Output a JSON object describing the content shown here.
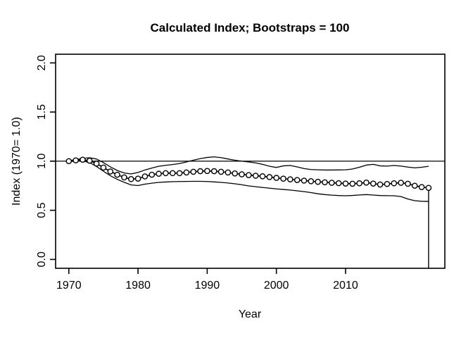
{
  "chart_data": {
    "type": "line",
    "title": "Calculated Index; Bootstraps = 100",
    "xlabel": "Year",
    "ylabel": "Index (1970= 1.0)",
    "x_ticks": [
      1970,
      1980,
      1990,
      2000,
      2010
    ],
    "y_ticks": [
      "0.0",
      "0.5",
      "1.0",
      "1.5",
      "2.0"
    ],
    "y_tick_values": [
      0.0,
      0.5,
      1.0,
      1.5,
      2.0
    ],
    "xlim": [
      1970,
      2022
    ],
    "ylim": [
      0.0,
      2.0
    ],
    "reference_line_y": 1.0,
    "grid": false,
    "legend": "none",
    "marker": "open-circle",
    "colors": {
      "line": "#000000",
      "background": "#ffffff",
      "marker_fill": "#ffffff"
    },
    "x": [
      1970,
      1971,
      1972,
      1973,
      1974,
      1975,
      1976,
      1977,
      1978,
      1979,
      1980,
      1981,
      1982,
      1983,
      1984,
      1985,
      1986,
      1987,
      1988,
      1989,
      1990,
      1991,
      1992,
      1993,
      1994,
      1995,
      1996,
      1997,
      1998,
      1999,
      2000,
      2001,
      2002,
      2003,
      2004,
      2005,
      2006,
      2007,
      2008,
      2009,
      2010,
      2011,
      2012,
      2013,
      2014,
      2015,
      2016,
      2017,
      2018,
      2019,
      2020,
      2021,
      2022
    ],
    "series": [
      {
        "name": "index",
        "values": [
          1.0,
          1.008,
          1.015,
          1.005,
          0.975,
          0.935,
          0.895,
          0.862,
          0.835,
          0.818,
          0.822,
          0.845,
          0.862,
          0.872,
          0.878,
          0.878,
          0.878,
          0.885,
          0.892,
          0.898,
          0.9,
          0.898,
          0.892,
          0.885,
          0.875,
          0.866,
          0.858,
          0.852,
          0.846,
          0.838,
          0.83,
          0.822,
          0.815,
          0.808,
          0.802,
          0.796,
          0.79,
          0.785,
          0.78,
          0.776,
          0.772,
          0.77,
          0.775,
          0.782,
          0.772,
          0.762,
          0.768,
          0.775,
          0.78,
          0.77,
          0.75,
          0.736,
          0.728
        ]
      },
      {
        "name": "upper_ci",
        "values": [
          1.004,
          1.016,
          1.028,
          1.035,
          1.022,
          0.985,
          0.942,
          0.905,
          0.88,
          0.87,
          0.885,
          0.91,
          0.93,
          0.948,
          0.958,
          0.966,
          0.976,
          0.992,
          1.01,
          1.026,
          1.038,
          1.044,
          1.036,
          1.022,
          1.01,
          1.0,
          0.992,
          0.982,
          0.968,
          0.948,
          0.936,
          0.952,
          0.956,
          0.942,
          0.925,
          0.915,
          0.912,
          0.91,
          0.91,
          0.911,
          0.912,
          0.92,
          0.938,
          0.96,
          0.968,
          0.952,
          0.95,
          0.956,
          0.95,
          0.94,
          0.932,
          0.938,
          0.948
        ]
      },
      {
        "name": "lower_ci",
        "values": [
          0.996,
          1.0,
          1.002,
          0.986,
          0.946,
          0.898,
          0.852,
          0.815,
          0.785,
          0.758,
          0.752,
          0.766,
          0.776,
          0.784,
          0.788,
          0.791,
          0.793,
          0.794,
          0.795,
          0.795,
          0.793,
          0.789,
          0.784,
          0.778,
          0.77,
          0.76,
          0.748,
          0.74,
          0.732,
          0.725,
          0.718,
          0.712,
          0.706,
          0.698,
          0.69,
          0.68,
          0.668,
          0.66,
          0.654,
          0.65,
          0.648,
          0.651,
          0.656,
          0.66,
          0.655,
          0.65,
          0.649,
          0.648,
          0.64,
          0.615,
          0.598,
          0.592,
          0.59
        ]
      }
    ],
    "terminal_drop": {
      "year": 2022,
      "from_value": 0.728,
      "to_plot_bottom": true
    }
  }
}
